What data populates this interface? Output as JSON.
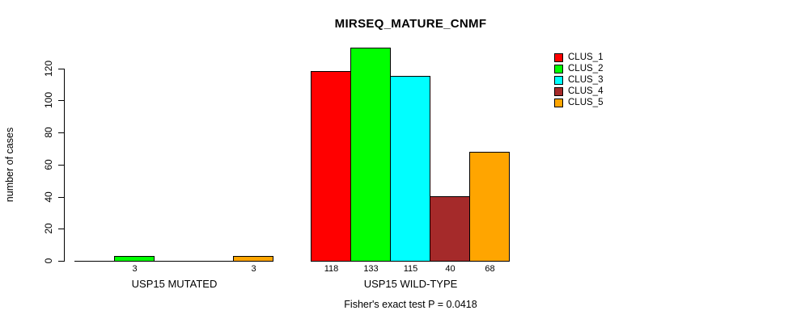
{
  "chart_data": {
    "type": "bar",
    "grouped": true,
    "title": "MIRSEQ_MATURE_CNMF",
    "xlabel": "",
    "ylabel": "number of cases",
    "caption": "Fisher's exact test P = 0.0418",
    "categories": [
      "USP15 MUTATED",
      "USP15 WILD-TYPE"
    ],
    "series": [
      {
        "name": "CLUS_1",
        "color": "#FF0000",
        "values": [
          0,
          118
        ]
      },
      {
        "name": "CLUS_2",
        "color": "#00FF00",
        "values": [
          3,
          133
        ]
      },
      {
        "name": "CLUS_3",
        "color": "#00FFFF",
        "values": [
          0,
          115
        ]
      },
      {
        "name": "CLUS_4",
        "color": "#A52A2A",
        "values": [
          0,
          40
        ]
      },
      {
        "name": "CLUS_5",
        "color": "#FFA500",
        "values": [
          3,
          68
        ]
      }
    ],
    "bar_value_labels_shown": [
      [
        "",
        "3",
        "",
        "",
        "3"
      ],
      [
        "118",
        "133",
        "115",
        "40",
        "68"
      ]
    ],
    "y_ticks": [
      0,
      20,
      40,
      60,
      80,
      100,
      120
    ],
    "ylim": [
      0,
      120
    ],
    "grid": false,
    "legend_position": "top-right",
    "legend_entries": [
      "CLUS_1",
      "CLUS_2",
      "CLUS_3",
      "CLUS_4",
      "CLUS_5"
    ],
    "axis_color": "#000000",
    "bar_border_color": "#000000",
    "background_color": "#FFFFFF"
  }
}
